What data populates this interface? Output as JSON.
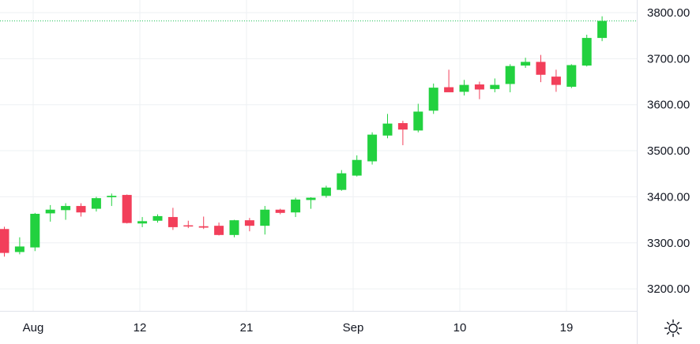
{
  "chart_data": {
    "type": "candlestick",
    "y_ticks": [
      "3800.00",
      "3700.00",
      "3600.00",
      "3500.00",
      "3400.00",
      "3300.00",
      "3200.00"
    ],
    "x_ticks": [
      "Aug",
      "12",
      "21",
      "Sep",
      "10",
      "19"
    ],
    "ylim": [
      3150,
      3830
    ],
    "price_line": 3782,
    "grid": true,
    "colors": {
      "up": "#22d13f",
      "down": "#f23f5a",
      "grid": "#eef0f3",
      "price_line": "#22c35a",
      "axis": "#e0e3eb"
    },
    "candles": [
      {
        "o": 3330,
        "h": 3335,
        "l": 3270,
        "c": 3278
      },
      {
        "o": 3280,
        "h": 3312,
        "l": 3275,
        "c": 3292
      },
      {
        "o": 3290,
        "h": 3365,
        "l": 3282,
        "c": 3363
      },
      {
        "o": 3364,
        "h": 3382,
        "l": 3346,
        "c": 3372
      },
      {
        "o": 3371,
        "h": 3386,
        "l": 3350,
        "c": 3380
      },
      {
        "o": 3380,
        "h": 3386,
        "l": 3357,
        "c": 3366
      },
      {
        "o": 3374,
        "h": 3400,
        "l": 3368,
        "c": 3397
      },
      {
        "o": 3399,
        "h": 3407,
        "l": 3380,
        "c": 3402
      },
      {
        "o": 3404,
        "h": 3405,
        "l": 3342,
        "c": 3343
      },
      {
        "o": 3342,
        "h": 3356,
        "l": 3334,
        "c": 3347
      },
      {
        "o": 3348,
        "h": 3362,
        "l": 3344,
        "c": 3358
      },
      {
        "o": 3356,
        "h": 3376,
        "l": 3328,
        "c": 3334
      },
      {
        "o": 3338,
        "h": 3348,
        "l": 3332,
        "c": 3336
      },
      {
        "o": 3336,
        "h": 3357,
        "l": 3330,
        "c": 3333
      },
      {
        "o": 3337,
        "h": 3344,
        "l": 3316,
        "c": 3317
      },
      {
        "o": 3317,
        "h": 3350,
        "l": 3312,
        "c": 3349
      },
      {
        "o": 3349,
        "h": 3354,
        "l": 3325,
        "c": 3337
      },
      {
        "o": 3337,
        "h": 3380,
        "l": 3318,
        "c": 3372
      },
      {
        "o": 3372,
        "h": 3374,
        "l": 3362,
        "c": 3365
      },
      {
        "o": 3366,
        "h": 3398,
        "l": 3356,
        "c": 3394
      },
      {
        "o": 3393,
        "h": 3399,
        "l": 3374,
        "c": 3398
      },
      {
        "o": 3402,
        "h": 3424,
        "l": 3398,
        "c": 3420
      },
      {
        "o": 3415,
        "h": 3458,
        "l": 3413,
        "c": 3451
      },
      {
        "o": 3446,
        "h": 3490,
        "l": 3444,
        "c": 3480
      },
      {
        "o": 3477,
        "h": 3540,
        "l": 3470,
        "c": 3535
      },
      {
        "o": 3533,
        "h": 3580,
        "l": 3527,
        "c": 3559
      },
      {
        "o": 3560,
        "h": 3565,
        "l": 3512,
        "c": 3546
      },
      {
        "o": 3544,
        "h": 3602,
        "l": 3540,
        "c": 3585
      },
      {
        "o": 3587,
        "h": 3646,
        "l": 3580,
        "c": 3637
      },
      {
        "o": 3638,
        "h": 3676,
        "l": 3629,
        "c": 3627
      },
      {
        "o": 3628,
        "h": 3654,
        "l": 3620,
        "c": 3643
      },
      {
        "o": 3644,
        "h": 3650,
        "l": 3612,
        "c": 3633
      },
      {
        "o": 3634,
        "h": 3657,
        "l": 3627,
        "c": 3643
      },
      {
        "o": 3645,
        "h": 3688,
        "l": 3627,
        "c": 3684
      },
      {
        "o": 3685,
        "h": 3702,
        "l": 3680,
        "c": 3693
      },
      {
        "o": 3693,
        "h": 3708,
        "l": 3649,
        "c": 3665
      },
      {
        "o": 3661,
        "h": 3676,
        "l": 3628,
        "c": 3643
      },
      {
        "o": 3639,
        "h": 3688,
        "l": 3636,
        "c": 3686
      },
      {
        "o": 3685,
        "h": 3752,
        "l": 3683,
        "c": 3745
      },
      {
        "o": 3745,
        "h": 3792,
        "l": 3738,
        "c": 3782
      }
    ]
  }
}
